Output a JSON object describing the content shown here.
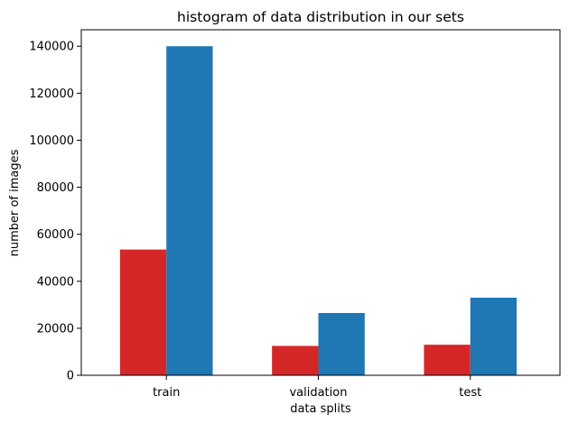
{
  "chart_data": {
    "type": "bar",
    "title": "histogram of data distribution in our sets",
    "xlabel": "data splits",
    "ylabel": "number of images",
    "categories": [
      "train",
      "validation",
      "test"
    ],
    "series": [
      {
        "color": "#d62728",
        "values": [
          53500,
          12500,
          13000
        ]
      },
      {
        "color": "#1f77b4",
        "values": [
          140000,
          26500,
          33000
        ]
      }
    ],
    "ylim": [
      0,
      147000
    ],
    "yticks": [
      0,
      20000,
      40000,
      60000,
      80000,
      100000,
      120000,
      140000
    ],
    "grid": false,
    "legend": "none"
  }
}
